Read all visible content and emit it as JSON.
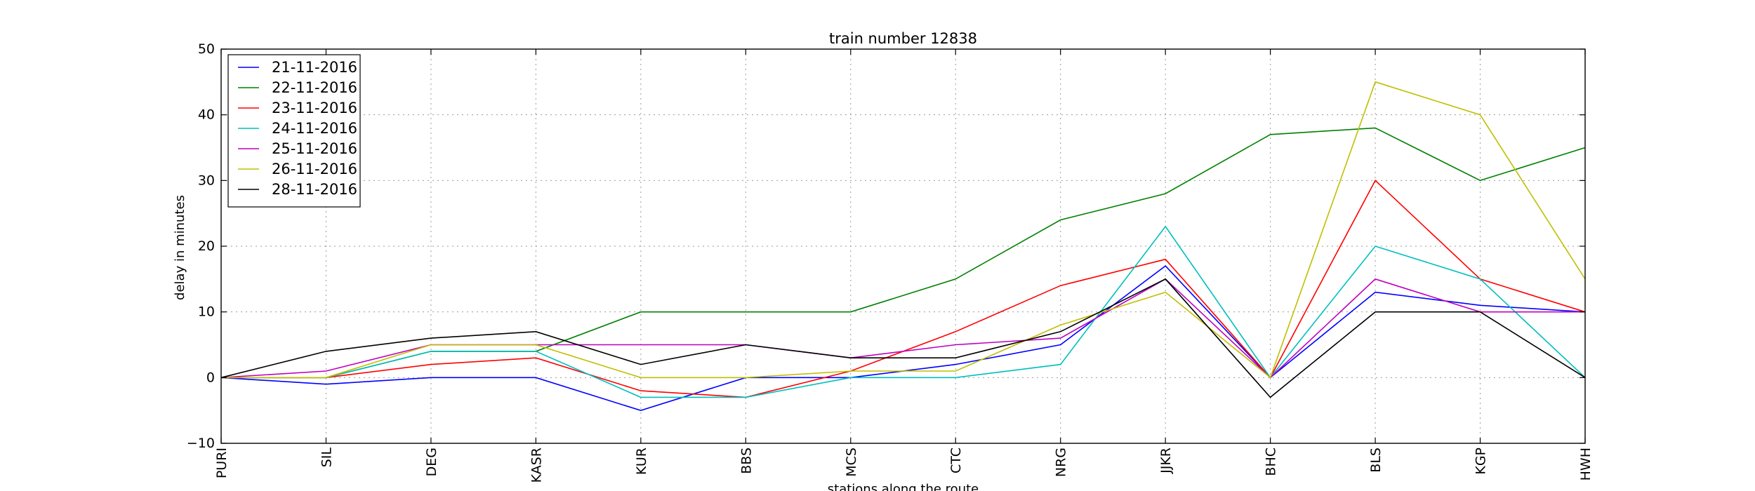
{
  "chart_data": {
    "type": "line",
    "title": "train number 12838",
    "xlabel": "stations along the route",
    "ylabel": "delay in minutes",
    "categories": [
      "PURI",
      "SIL",
      "DEG",
      "KASR",
      "KUR",
      "BBS",
      "MCS",
      "CTC",
      "NRG",
      "JJKR",
      "BHC",
      "BLS",
      "KGP",
      "HWH"
    ],
    "ylim": [
      -10,
      50
    ],
    "yticks": [
      -10,
      0,
      10,
      20,
      30,
      40,
      50
    ],
    "grid": true,
    "legend_position": "top-left",
    "series": [
      {
        "name": "21-11-2016",
        "color": "#0000ff",
        "values": [
          0,
          -1,
          0,
          0,
          -5,
          0,
          0,
          2,
          5,
          17,
          0,
          13,
          11,
          10
        ]
      },
      {
        "name": "22-11-2016",
        "color": "#008000",
        "values": [
          0,
          0,
          4,
          4,
          10,
          10,
          10,
          15,
          24,
          28,
          37,
          38,
          30,
          35
        ]
      },
      {
        "name": "23-11-2016",
        "color": "#ff0000",
        "values": [
          0,
          0,
          2,
          3,
          -2,
          -3,
          1,
          7,
          14,
          18,
          0,
          30,
          15,
          10
        ]
      },
      {
        "name": "24-11-2016",
        "color": "#00bfbf",
        "values": [
          0,
          0,
          4,
          4,
          -3,
          -3,
          0,
          0,
          2,
          23,
          0,
          20,
          15,
          0
        ]
      },
      {
        "name": "25-11-2016",
        "color": "#bf00bf",
        "values": [
          0,
          1,
          5,
          5,
          5,
          5,
          3,
          5,
          6,
          15,
          0,
          15,
          10,
          10
        ]
      },
      {
        "name": "26-11-2016",
        "color": "#bfbf00",
        "values": [
          0,
          0,
          5,
          5,
          0,
          0,
          1,
          1,
          8,
          13,
          0,
          45,
          40,
          15
        ]
      },
      {
        "name": "28-11-2016",
        "color": "#000000",
        "values": [
          0,
          4,
          6,
          7,
          2,
          5,
          3,
          3,
          7,
          15,
          -3,
          10,
          10,
          0
        ]
      }
    ]
  }
}
